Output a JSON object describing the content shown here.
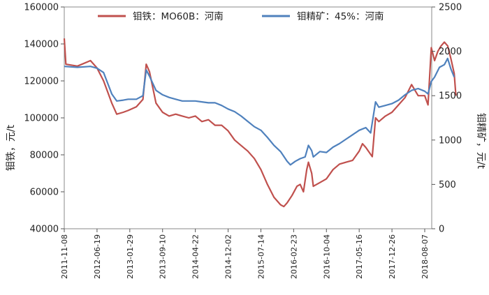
{
  "chart_data": {
    "type": "line",
    "title": "",
    "x_categories": [
      "2011-11-08",
      "2012-06-19",
      "2013-01-29",
      "2013-09-10",
      "2014-04-22",
      "2014-12-02",
      "2015-07-14",
      "2016-02-23",
      "2016-10-04",
      "2017-05-16",
      "2017-12-26",
      "2018-08-07"
    ],
    "y_left": {
      "label": "钼铁，元/t",
      "min": 40000,
      "max": 160000,
      "ticks": [
        40000,
        60000,
        80000,
        100000,
        120000,
        140000,
        160000
      ]
    },
    "y_right": {
      "label": "钼精矿，元/t",
      "min": 0,
      "max": 2500,
      "ticks": [
        0,
        500,
        1000,
        1500,
        2000,
        2500
      ]
    },
    "legend_position": "top",
    "colors": {
      "ferromoly": "#c0504d",
      "concentrate": "#4f81bd"
    },
    "series": [
      {
        "name": "钼铁：MO60B：河南",
        "axis": "left",
        "points": [
          [
            0,
            143000
          ],
          [
            0.05,
            129000
          ],
          [
            0.4,
            128000
          ],
          [
            0.8,
            131000
          ],
          [
            1.0,
            127000
          ],
          [
            1.2,
            120000
          ],
          [
            1.45,
            108000
          ],
          [
            1.6,
            102000
          ],
          [
            1.8,
            103000
          ],
          [
            1.95,
            104000
          ],
          [
            2.2,
            106000
          ],
          [
            2.4,
            110000
          ],
          [
            2.5,
            129000
          ],
          [
            2.6,
            125000
          ],
          [
            2.8,
            108000
          ],
          [
            3.0,
            103000
          ],
          [
            3.2,
            101000
          ],
          [
            3.4,
            102000
          ],
          [
            3.6,
            101000
          ],
          [
            3.8,
            100000
          ],
          [
            4.0,
            101000
          ],
          [
            4.2,
            98000
          ],
          [
            4.4,
            99000
          ],
          [
            4.6,
            96000
          ],
          [
            4.8,
            96000
          ],
          [
            5.0,
            93000
          ],
          [
            5.2,
            88000
          ],
          [
            5.4,
            85000
          ],
          [
            5.6,
            82000
          ],
          [
            5.8,
            78000
          ],
          [
            6.0,
            72000
          ],
          [
            6.2,
            64000
          ],
          [
            6.4,
            57000
          ],
          [
            6.6,
            53000
          ],
          [
            6.7,
            52000
          ],
          [
            6.8,
            54000
          ],
          [
            6.95,
            58000
          ],
          [
            7.1,
            63000
          ],
          [
            7.2,
            64000
          ],
          [
            7.3,
            60000
          ],
          [
            7.4,
            72000
          ],
          [
            7.45,
            76000
          ],
          [
            7.55,
            70000
          ],
          [
            7.6,
            63000
          ],
          [
            7.8,
            65000
          ],
          [
            8.0,
            67000
          ],
          [
            8.2,
            72000
          ],
          [
            8.4,
            75000
          ],
          [
            8.6,
            76000
          ],
          [
            8.8,
            77000
          ],
          [
            9.0,
            82000
          ],
          [
            9.1,
            86000
          ],
          [
            9.2,
            84000
          ],
          [
            9.4,
            79000
          ],
          [
            9.5,
            100000
          ],
          [
            9.6,
            98000
          ],
          [
            9.8,
            101000
          ],
          [
            10.0,
            103000
          ],
          [
            10.2,
            107000
          ],
          [
            10.4,
            111000
          ],
          [
            10.6,
            118000
          ],
          [
            10.8,
            112000
          ],
          [
            11.0,
            112000
          ],
          [
            11.1,
            107000
          ],
          [
            11.2,
            138000
          ],
          [
            11.3,
            131000
          ],
          [
            11.4,
            136000
          ],
          [
            11.5,
            139000
          ],
          [
            11.6,
            141000
          ],
          [
            11.7,
            139000
          ],
          [
            11.8,
            132000
          ],
          [
            11.9,
            124000
          ],
          [
            11.95,
            112000
          ]
        ]
      },
      {
        "name": "钼精矿：45%：河南",
        "axis": "right",
        "points": [
          [
            0,
            1830
          ],
          [
            0.4,
            1820
          ],
          [
            0.8,
            1830
          ],
          [
            1.0,
            1810
          ],
          [
            1.2,
            1760
          ],
          [
            1.45,
            1520
          ],
          [
            1.6,
            1440
          ],
          [
            1.8,
            1450
          ],
          [
            1.95,
            1460
          ],
          [
            2.2,
            1460
          ],
          [
            2.4,
            1500
          ],
          [
            2.5,
            1790
          ],
          [
            2.6,
            1720
          ],
          [
            2.8,
            1560
          ],
          [
            3.0,
            1510
          ],
          [
            3.2,
            1480
          ],
          [
            3.4,
            1460
          ],
          [
            3.6,
            1440
          ],
          [
            3.8,
            1440
          ],
          [
            4.0,
            1440
          ],
          [
            4.2,
            1430
          ],
          [
            4.4,
            1420
          ],
          [
            4.6,
            1420
          ],
          [
            4.8,
            1390
          ],
          [
            5.0,
            1350
          ],
          [
            5.2,
            1320
          ],
          [
            5.4,
            1270
          ],
          [
            5.6,
            1210
          ],
          [
            5.8,
            1150
          ],
          [
            6.0,
            1110
          ],
          [
            6.2,
            1030
          ],
          [
            6.4,
            940
          ],
          [
            6.6,
            870
          ],
          [
            6.8,
            760
          ],
          [
            6.9,
            720
          ],
          [
            7.05,
            760
          ],
          [
            7.2,
            790
          ],
          [
            7.35,
            810
          ],
          [
            7.45,
            940
          ],
          [
            7.55,
            880
          ],
          [
            7.6,
            810
          ],
          [
            7.8,
            870
          ],
          [
            8.0,
            860
          ],
          [
            8.2,
            920
          ],
          [
            8.4,
            960
          ],
          [
            8.6,
            1010
          ],
          [
            8.8,
            1060
          ],
          [
            9.0,
            1110
          ],
          [
            9.2,
            1140
          ],
          [
            9.35,
            1080
          ],
          [
            9.5,
            1430
          ],
          [
            9.6,
            1370
          ],
          [
            9.8,
            1390
          ],
          [
            10.0,
            1410
          ],
          [
            10.2,
            1450
          ],
          [
            10.4,
            1510
          ],
          [
            10.6,
            1560
          ],
          [
            10.8,
            1580
          ],
          [
            11.0,
            1550
          ],
          [
            11.1,
            1520
          ],
          [
            11.2,
            1660
          ],
          [
            11.3,
            1710
          ],
          [
            11.45,
            1820
          ],
          [
            11.6,
            1850
          ],
          [
            11.7,
            1920
          ],
          [
            11.8,
            1800
          ],
          [
            11.9,
            1710
          ]
        ]
      }
    ]
  }
}
